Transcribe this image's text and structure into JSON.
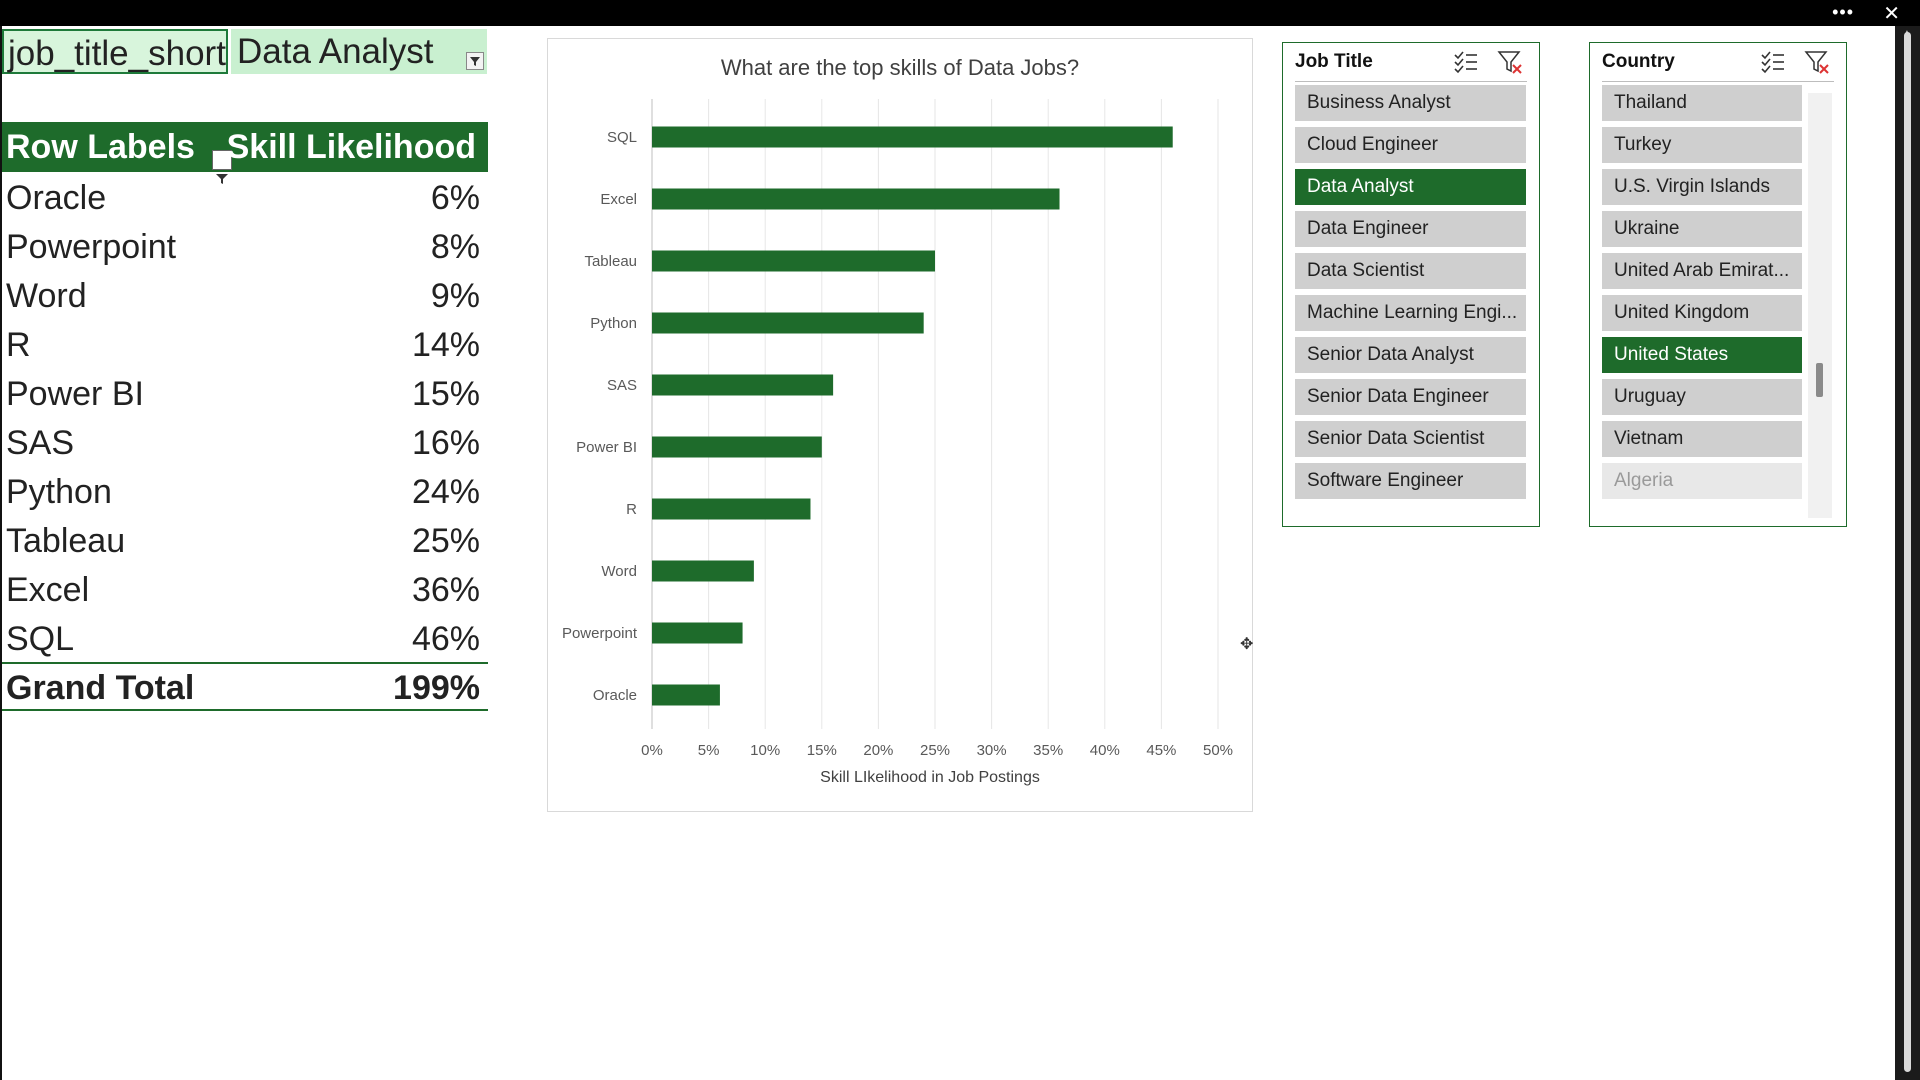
{
  "filter": {
    "field": "job_title_short",
    "value": "Data Analyst"
  },
  "pivot": {
    "row_labels_header": "Row Labels",
    "value_header": "Skill Likelihood",
    "rows": [
      {
        "label": "Oracle",
        "value": "6%"
      },
      {
        "label": "Powerpoint",
        "value": "8%"
      },
      {
        "label": "Word",
        "value": "9%"
      },
      {
        "label": "R",
        "value": "14%"
      },
      {
        "label": "Power BI",
        "value": "15%"
      },
      {
        "label": "SAS",
        "value": "16%"
      },
      {
        "label": "Python",
        "value": "24%"
      },
      {
        "label": "Tableau",
        "value": "25%"
      },
      {
        "label": "Excel",
        "value": "36%"
      },
      {
        "label": "SQL",
        "value": "46%"
      }
    ],
    "grand_total_label": "Grand Total",
    "grand_total_value": "199%"
  },
  "chart_data": {
    "type": "bar",
    "orientation": "horizontal",
    "title": "What are the top skills of Data Jobs?",
    "xlabel": "Skill LIkelihood in Job Postings",
    "ylabel": "",
    "categories": [
      "SQL",
      "Excel",
      "Tableau",
      "Python",
      "SAS",
      "Power BI",
      "R",
      "Word",
      "Powerpoint",
      "Oracle"
    ],
    "values": [
      46,
      36,
      25,
      24,
      16,
      15,
      14,
      9,
      8,
      6
    ],
    "xlim": [
      0,
      50
    ],
    "x_ticks": [
      "0%",
      "5%",
      "10%",
      "15%",
      "20%",
      "25%",
      "30%",
      "35%",
      "40%",
      "45%",
      "50%"
    ],
    "grid": "vertical",
    "bar_color": "#1e6b2b"
  },
  "slicers": {
    "job_title": {
      "title": "Job Title",
      "items": [
        {
          "label": "Business Analyst",
          "state": "normal"
        },
        {
          "label": "Cloud Engineer",
          "state": "normal"
        },
        {
          "label": "Data Analyst",
          "state": "selected"
        },
        {
          "label": "Data Engineer",
          "state": "normal"
        },
        {
          "label": "Data Scientist",
          "state": "normal"
        },
        {
          "label": "Machine Learning Engi...",
          "state": "normal"
        },
        {
          "label": "Senior Data Analyst",
          "state": "normal"
        },
        {
          "label": "Senior Data Engineer",
          "state": "normal"
        },
        {
          "label": "Senior Data Scientist",
          "state": "normal"
        },
        {
          "label": "Software Engineer",
          "state": "normal"
        }
      ]
    },
    "country": {
      "title": "Country",
      "items": [
        {
          "label": "Thailand",
          "state": "normal"
        },
        {
          "label": "Turkey",
          "state": "normal"
        },
        {
          "label": "U.S. Virgin Islands",
          "state": "normal"
        },
        {
          "label": "Ukraine",
          "state": "normal"
        },
        {
          "label": "United Arab Emirat...",
          "state": "normal"
        },
        {
          "label": "United Kingdom",
          "state": "normal"
        },
        {
          "label": "United States",
          "state": "selected"
        },
        {
          "label": "Uruguay",
          "state": "normal"
        },
        {
          "label": "Vietnam",
          "state": "normal"
        },
        {
          "label": "Algeria",
          "state": "dimmed"
        }
      ]
    }
  },
  "colors": {
    "accent": "#1e6b2b",
    "filter_bg": "#c9f0d0",
    "slicer_item": "#cfcfcf"
  },
  "icons": {
    "top_more": "ellipsis-icon",
    "top_close": "close-icon",
    "multi_select": "multi-select-icon",
    "clear_filter": "clear-filter-icon"
  }
}
